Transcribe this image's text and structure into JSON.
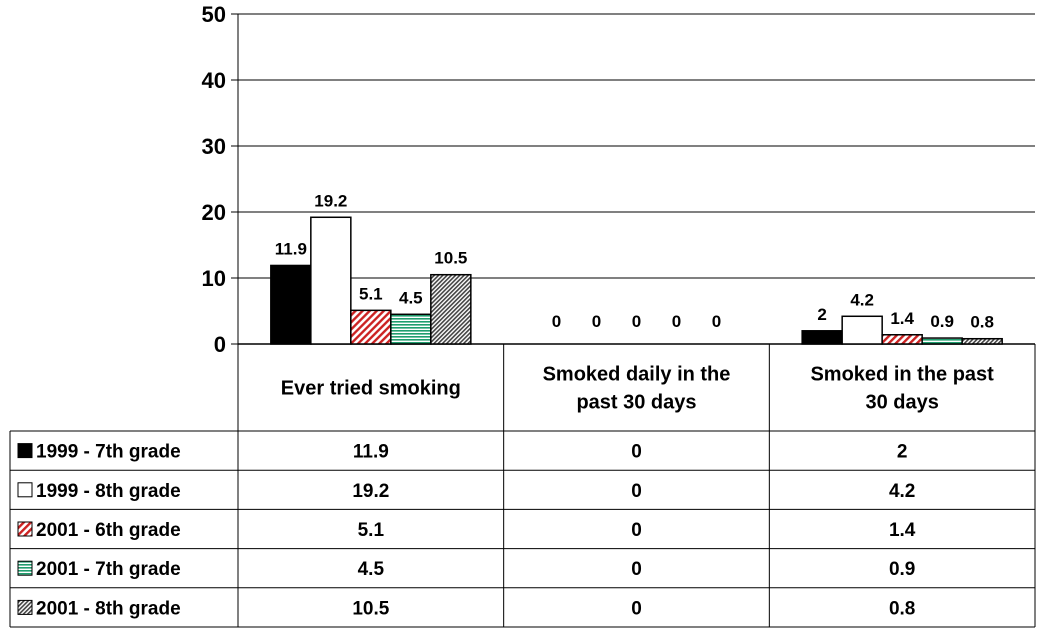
{
  "chart_data": {
    "type": "bar",
    "ylim": [
      0,
      50
    ],
    "yticks": [
      0,
      10,
      20,
      30,
      40,
      50
    ],
    "categories": [
      [
        "Ever tried smoking"
      ],
      [
        "Smoked daily in the",
        "past 30 days"
      ],
      [
        "Smoked in the past",
        "30 days"
      ]
    ],
    "series": [
      {
        "name": "1999 - 7th grade",
        "values": [
          11.9,
          0,
          2
        ],
        "fill": "#000000",
        "pattern": "solid",
        "labels": [
          "11.9",
          "0",
          "2"
        ]
      },
      {
        "name": "1999 - 8th grade",
        "values": [
          19.2,
          0,
          4.2
        ],
        "fill": "#ffffff",
        "pattern": "solid",
        "labels": [
          "19.2",
          "0",
          "4.2"
        ]
      },
      {
        "name": "2001 - 6th grade",
        "values": [
          5.1,
          0,
          1.4
        ],
        "fill": "#cc2222",
        "pattern": "diagonal",
        "labels": [
          "5.1",
          "0",
          "1.4"
        ]
      },
      {
        "name": "2001 - 7th grade",
        "values": [
          4.5,
          0,
          0.9
        ],
        "fill": "#1f9e6e",
        "pattern": "horizontal",
        "labels": [
          "4.5",
          "0",
          "0.9"
        ]
      },
      {
        "name": "2001 - 8th grade",
        "values": [
          10.5,
          0,
          0.8
        ],
        "fill": "#555555",
        "pattern": "diagonal",
        "labels": [
          "10.5",
          "0",
          "0.8"
        ]
      }
    ],
    "grid": true,
    "legend": "data-table"
  }
}
